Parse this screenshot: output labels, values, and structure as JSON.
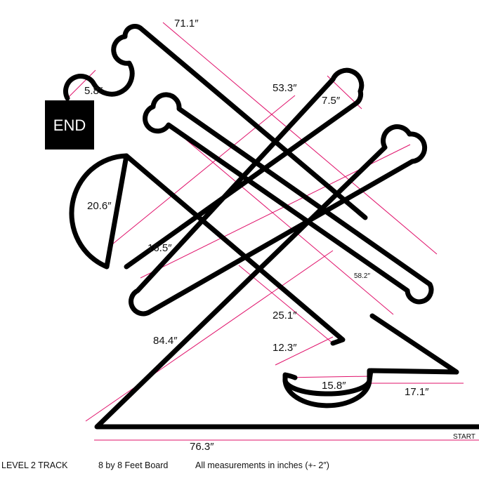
{
  "diagram": {
    "end_label": "END",
    "start_label": "START",
    "measurements": {
      "top_diagonal": "71.1″",
      "small_loop": "5.8″",
      "long_diag": "53.3″",
      "top_right_loop": "7.5″",
      "semicircle": "20.6″",
      "left_mid": "16.5″",
      "right_diag": "58.2″",
      "center_down": "25.1″",
      "lower_left": "84.4″",
      "lower_small": "12.3″",
      "bottom_loop": "15.8″",
      "bottom_right": "17.1″",
      "bottom": "76.3″"
    },
    "colors": {
      "track": "#000000",
      "guide": "#e0106a",
      "end_box": "#000000"
    }
  },
  "footer": {
    "title": "LEVEL 2 TRACK",
    "board": "8 by 8 Feet Board",
    "note": "All measurements in inches (+- 2″)"
  }
}
